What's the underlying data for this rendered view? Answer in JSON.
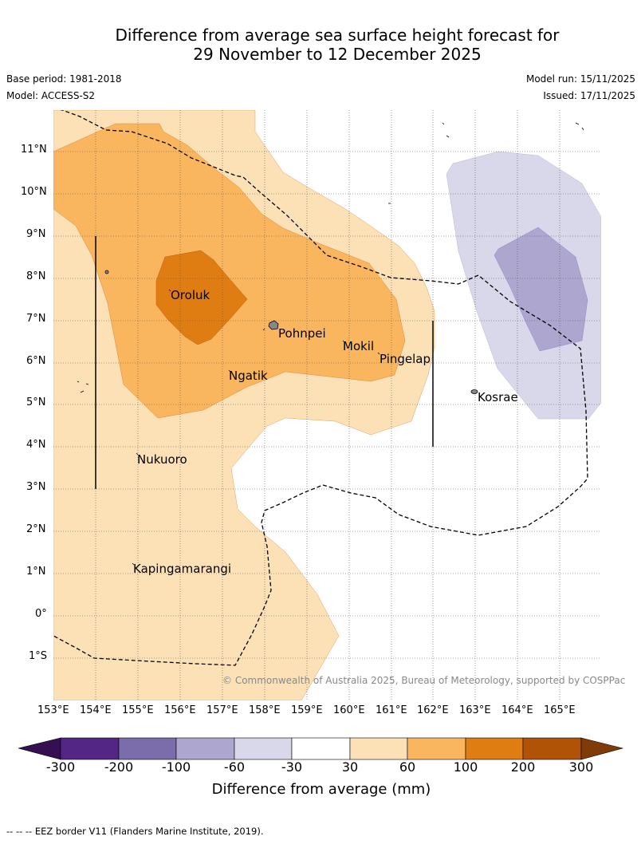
{
  "title": {
    "line1": "Difference from average sea surface height forecast for",
    "line2": "29 November to 12 December 2025"
  },
  "meta": {
    "base_period": "Base period: 1981-2018",
    "model": "Model: ACCESS-S2",
    "model_run": "Model run: 15/11/2025",
    "issued": "Issued: 17/11/2025"
  },
  "axes": {
    "lat_labels": [
      "11°N",
      "10°N",
      "9°N",
      "8°N",
      "7°N",
      "6°N",
      "5°N",
      "4°N",
      "3°N",
      "2°N",
      "1°N",
      "0°",
      "1°S"
    ],
    "lon_labels": [
      "153°E",
      "154°E",
      "155°E",
      "156°E",
      "157°E",
      "158°E",
      "159°E",
      "160°E",
      "161°E",
      "162°E",
      "163°E",
      "164°E",
      "165°E"
    ]
  },
  "places": {
    "oroluk": "Oroluk",
    "pohnpei": "Pohnpei",
    "mokil": "Mokil",
    "pingelap": "Pingelap",
    "ngatik": "Ngatik",
    "kosrae": "Kosrae",
    "nukuoro": "Nukuoro",
    "kapingamarangi": "Kapingamarangi"
  },
  "copyright": "© Commonwealth of Australia 2025, Bureau of Meteorology, supported by COSPPac",
  "colorbar": {
    "title": "Difference from average (mm)",
    "labels": [
      "-300",
      "-200",
      "-100",
      "-60",
      "-30",
      "30",
      "60",
      "100",
      "200",
      "300"
    ],
    "colors": [
      "#341053",
      "#532585",
      "#7b6dac",
      "#ada6cf",
      "#d8d8ea",
      "#ffffff",
      "#fde1b6",
      "#fab65e",
      "#e07d12",
      "#b15307",
      "#7f3b08"
    ]
  },
  "footer": "--  --  -- EEZ border V11 (Flanders Marine Institute, 2019)."
}
